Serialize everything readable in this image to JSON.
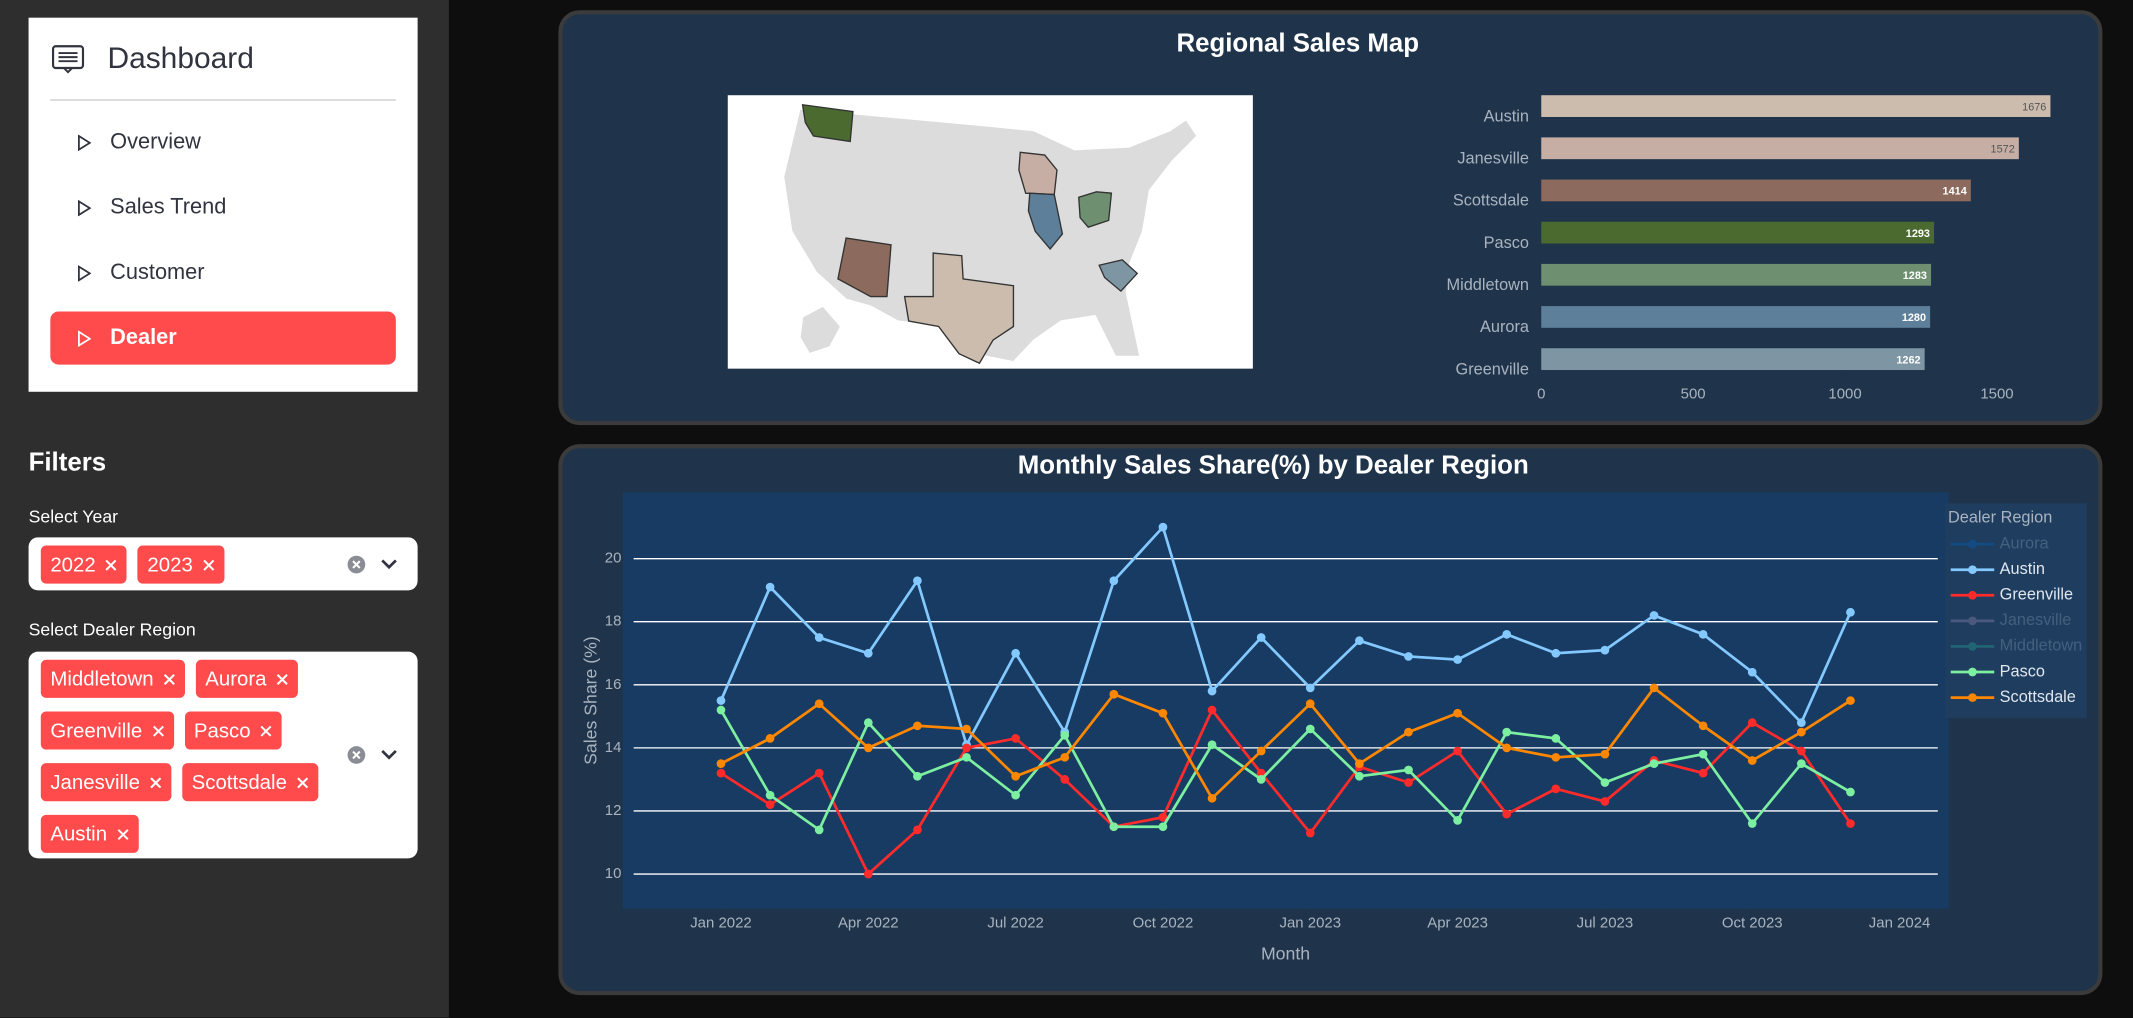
{
  "sidebar": {
    "title": "Dashboard",
    "nav": [
      "Overview",
      "Sales Trend",
      "Customer",
      "Dealer"
    ],
    "active": 3
  },
  "filters": {
    "title": "Filters",
    "year": {
      "label": "Select Year",
      "selected": [
        "2022",
        "2023"
      ]
    },
    "region": {
      "label": "Select Dealer Region",
      "selected": [
        "Middletown",
        "Aurora",
        "Greenville",
        "Pasco",
        "Janesville",
        "Scottsdale",
        "Austin"
      ]
    }
  },
  "chart_data": [
    {
      "type": "hbar",
      "title": "Regional Sales Map",
      "categories": [
        "Austin",
        "Janesville",
        "Scottsdale",
        "Pasco",
        "Middletown",
        "Aurora",
        "Greenville"
      ],
      "values": [
        1676,
        1572,
        1414,
        1293,
        1283,
        1280,
        1262
      ],
      "colors": [
        "#cbbcad",
        "#c6aea4",
        "#8c6a5d",
        "#4b6a2f",
        "#6e9070",
        "#5d7f99",
        "#7e96a3"
      ],
      "xlim": [
        0,
        1760
      ],
      "xticks": [
        0,
        500,
        1000,
        1500
      ]
    },
    {
      "type": "line",
      "title": "Monthly Sales Share(%) by Dealer Region",
      "xlabel": "Month",
      "ylabel": "Sales Share (%)",
      "legend_title": "Dealer Region",
      "x": [
        "2022-01",
        "2022-02",
        "2022-03",
        "2022-04",
        "2022-05",
        "2022-06",
        "2022-07",
        "2022-08",
        "2022-09",
        "2022-10",
        "2022-11",
        "2022-12",
        "2023-01",
        "2023-02",
        "2023-03",
        "2023-04",
        "2023-05",
        "2023-06",
        "2023-07",
        "2023-08",
        "2023-09",
        "2023-10",
        "2023-11",
        "2023-12"
      ],
      "series": [
        {
          "name": "Aurora",
          "color": "#0068c9",
          "visible": false
        },
        {
          "name": "Austin",
          "color": "#83c9ff",
          "values": [
            15.5,
            19.1,
            17.5,
            17.0,
            19.3,
            14.1,
            17.0,
            14.5,
            19.3,
            21.0,
            15.8,
            17.5,
            15.9,
            17.4,
            16.9,
            16.8,
            17.6,
            17.0,
            17.1,
            18.2,
            17.6,
            16.4,
            14.8,
            18.3
          ]
        },
        {
          "name": "Greenville",
          "color": "#ff2b2b",
          "values": [
            13.2,
            12.2,
            13.2,
            10.0,
            11.4,
            14.0,
            14.3,
            13.0,
            11.5,
            11.8,
            15.2,
            13.2,
            11.3,
            13.4,
            12.9,
            13.9,
            11.9,
            12.7,
            12.3,
            13.6,
            13.2,
            14.8,
            13.9,
            11.6
          ]
        },
        {
          "name": "Janesville",
          "color": "#a08fb8",
          "visible": false
        },
        {
          "name": "Middletown",
          "color": "#29b09d",
          "visible": false
        },
        {
          "name": "Pasco",
          "color": "#7defa1",
          "values": [
            15.2,
            12.5,
            11.4,
            14.8,
            13.1,
            13.7,
            12.5,
            14.4,
            11.5,
            11.5,
            14.1,
            13.0,
            14.6,
            13.1,
            13.3,
            11.7,
            14.5,
            14.3,
            12.9,
            13.5,
            13.8,
            11.6,
            13.5,
            12.6
          ]
        },
        {
          "name": "Scottsdale",
          "color": "#ff8700",
          "values": [
            13.5,
            14.3,
            15.4,
            14.0,
            14.7,
            14.6,
            13.1,
            13.7,
            15.7,
            15.1,
            12.4,
            13.9,
            15.4,
            13.5,
            14.5,
            15.1,
            14.0,
            13.7,
            13.8,
            15.9,
            14.7,
            13.6,
            14.5,
            15.5
          ]
        }
      ],
      "xlim": [
        "2021-11",
        "2024-02"
      ],
      "xticks": [
        {
          "value": "2022-01",
          "label": "Jan 2022"
        },
        {
          "value": "2022-04",
          "label": "Apr 2022"
        },
        {
          "value": "2022-07",
          "label": "Jul 2022"
        },
        {
          "value": "2022-10",
          "label": "Oct 2022"
        },
        {
          "value": "2023-01",
          "label": "Jan 2023"
        },
        {
          "value": "2023-04",
          "label": "Apr 2023"
        },
        {
          "value": "2023-07",
          "label": "Jul 2023"
        },
        {
          "value": "2023-10",
          "label": "Oct 2023"
        },
        {
          "value": "2024-01",
          "label": "Jan 2024"
        }
      ],
      "ylim": [
        8.9,
        22.1
      ],
      "yticks": [
        10,
        12,
        14,
        16,
        18,
        20
      ],
      "grid": true
    }
  ]
}
